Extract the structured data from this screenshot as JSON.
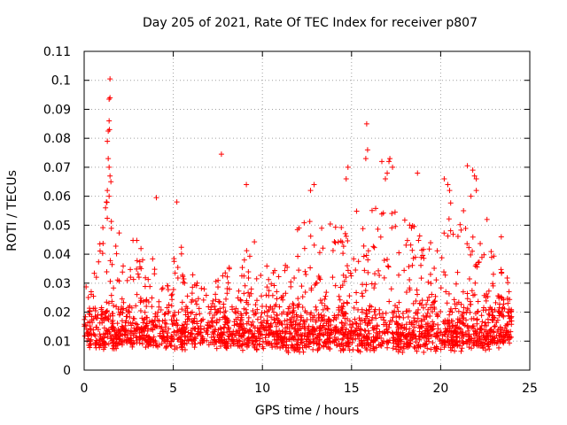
{
  "chart_data": {
    "type": "scatter",
    "title": "Day 205 of 2021, Rate Of TEC Index for receiver p807",
    "xlabel": "GPS time / hours",
    "ylabel": "ROTI / TECUs",
    "xlim": [
      0,
      25
    ],
    "ylim": [
      0,
      0.11
    ],
    "x_ticks": [
      "0",
      "5",
      "10",
      "15",
      "20",
      "25"
    ],
    "y_ticks": [
      "0",
      "0.01",
      "0.02",
      "0.03",
      "0.04",
      "0.05",
      "0.06",
      "0.07",
      "0.08",
      "0.09",
      "0.1",
      "0.11"
    ],
    "grid": true,
    "marker": "+",
    "series_color": "#ff0000",
    "envelope": {
      "x": [
        0,
        0.5,
        1.0,
        1.3,
        1.5,
        2.0,
        2.5,
        3.0,
        3.5,
        4.0,
        4.5,
        5.0,
        5.5,
        6.0,
        6.5,
        7.0,
        7.5,
        8.0,
        8.5,
        9.0,
        9.5,
        10.0,
        10.5,
        11.0,
        11.5,
        12.0,
        12.5,
        13.0,
        13.5,
        14.0,
        14.5,
        15.0,
        15.5,
        16.0,
        16.5,
        17.0,
        17.5,
        18.0,
        18.5,
        19.0,
        19.5,
        20.0,
        20.5,
        21.0,
        21.5,
        22.0,
        22.5,
        23.0,
        23.5,
        24.0
      ],
      "upper": [
        0.03,
        0.05,
        0.048,
        0.06,
        0.052,
        0.047,
        0.048,
        0.045,
        0.04,
        0.038,
        0.035,
        0.04,
        0.045,
        0.035,
        0.03,
        0.028,
        0.033,
        0.035,
        0.038,
        0.04,
        0.046,
        0.04,
        0.035,
        0.038,
        0.042,
        0.05,
        0.055,
        0.058,
        0.055,
        0.052,
        0.05,
        0.055,
        0.058,
        0.06,
        0.058,
        0.058,
        0.057,
        0.055,
        0.05,
        0.045,
        0.045,
        0.05,
        0.06,
        0.058,
        0.055,
        0.05,
        0.045,
        0.04,
        0.035,
        0.03
      ],
      "lower": [
        0.008,
        0.006,
        0.006,
        0.006,
        0.007,
        0.006,
        0.007,
        0.007,
        0.007,
        0.007,
        0.006,
        0.005,
        0.006,
        0.007,
        0.007,
        0.007,
        0.007,
        0.007,
        0.006,
        0.006,
        0.006,
        0.007,
        0.007,
        0.006,
        0.005,
        0.006,
        0.006,
        0.006,
        0.006,
        0.007,
        0.006,
        0.006,
        0.006,
        0.006,
        0.006,
        0.006,
        0.006,
        0.006,
        0.006,
        0.006,
        0.006,
        0.006,
        0.006,
        0.006,
        0.006,
        0.006,
        0.006,
        0.006,
        0.007,
        0.008
      ]
    },
    "outliers": [
      {
        "x": 1.45,
        "y": 0.1005
      },
      {
        "x": 1.45,
        "y": 0.094
      },
      {
        "x": 1.4,
        "y": 0.0935
      },
      {
        "x": 1.4,
        "y": 0.086
      },
      {
        "x": 1.42,
        "y": 0.083
      },
      {
        "x": 1.35,
        "y": 0.0825
      },
      {
        "x": 1.3,
        "y": 0.079
      },
      {
        "x": 1.35,
        "y": 0.073
      },
      {
        "x": 1.4,
        "y": 0.07
      },
      {
        "x": 1.45,
        "y": 0.067
      },
      {
        "x": 1.5,
        "y": 0.065
      },
      {
        "x": 1.3,
        "y": 0.062
      },
      {
        "x": 1.4,
        "y": 0.06
      },
      {
        "x": 1.25,
        "y": 0.058
      },
      {
        "x": 1.2,
        "y": 0.056
      },
      {
        "x": 4.05,
        "y": 0.0595
      },
      {
        "x": 5.2,
        "y": 0.058
      },
      {
        "x": 7.7,
        "y": 0.0745
      },
      {
        "x": 9.1,
        "y": 0.064
      },
      {
        "x": 12.9,
        "y": 0.064
      },
      {
        "x": 12.7,
        "y": 0.062
      },
      {
        "x": 14.7,
        "y": 0.066
      },
      {
        "x": 14.8,
        "y": 0.07
      },
      {
        "x": 15.85,
        "y": 0.085
      },
      {
        "x": 15.9,
        "y": 0.076
      },
      {
        "x": 15.8,
        "y": 0.073
      },
      {
        "x": 16.7,
        "y": 0.072
      },
      {
        "x": 17.1,
        "y": 0.072
      },
      {
        "x": 17.15,
        "y": 0.073
      },
      {
        "x": 17.3,
        "y": 0.07
      },
      {
        "x": 17.0,
        "y": 0.068
      },
      {
        "x": 16.9,
        "y": 0.066
      },
      {
        "x": 18.7,
        "y": 0.068
      },
      {
        "x": 20.2,
        "y": 0.066
      },
      {
        "x": 20.4,
        "y": 0.064
      },
      {
        "x": 20.5,
        "y": 0.062
      },
      {
        "x": 21.5,
        "y": 0.0705
      },
      {
        "x": 21.8,
        "y": 0.069
      },
      {
        "x": 21.9,
        "y": 0.067
      },
      {
        "x": 22.0,
        "y": 0.066
      },
      {
        "x": 21.7,
        "y": 0.06
      },
      {
        "x": 22.0,
        "y": 0.062
      },
      {
        "x": 22.6,
        "y": 0.052
      },
      {
        "x": 23.4,
        "y": 0.046
      }
    ]
  }
}
